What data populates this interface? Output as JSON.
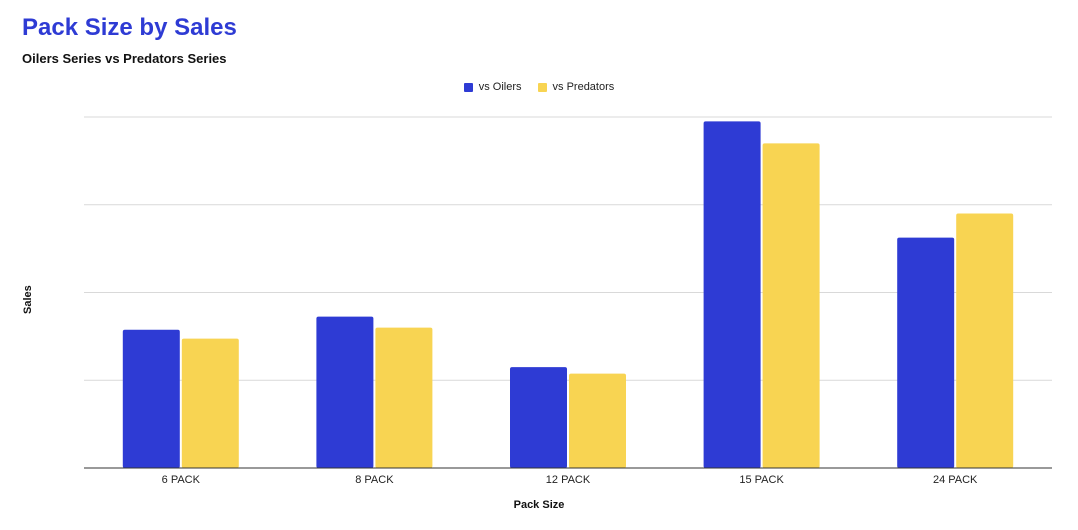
{
  "chart_data": {
    "type": "bar",
    "title": "Pack Size by Sales",
    "subtitle": "Oilers Series vs Predators Series",
    "xlabel": "Pack Size",
    "ylabel": "Sales",
    "categories": [
      "6 PACK",
      "8 PACK",
      "12 PACK",
      "15 PACK",
      "24 PACK"
    ],
    "series": [
      {
        "name": "vs Oilers",
        "color": "#2e3bd4",
        "values": [
          31.5,
          34.5,
          23,
          79,
          52.5
        ]
      },
      {
        "name": "vs Predators",
        "color": "#f8d452",
        "values": [
          29.5,
          32,
          21.5,
          74,
          58
        ]
      }
    ],
    "ylim": [
      0,
      80
    ],
    "y_tick_labels_shown": false,
    "grid": true,
    "legend_position": "top-center"
  }
}
